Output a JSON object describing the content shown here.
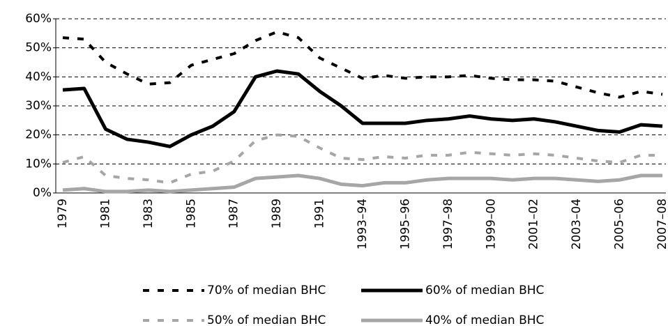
{
  "chart_data": {
    "type": "line",
    "categories": [
      "1979",
      null,
      "1981",
      null,
      "1983",
      null,
      "1985",
      null,
      "1987",
      null,
      "1989",
      null,
      "1991",
      null,
      "1993–94",
      null,
      "1995–96",
      null,
      "1997–98",
      null,
      "1999–00",
      null,
      "2001–02",
      null,
      "2003–04",
      null,
      "2005–06",
      null,
      "2007–08"
    ],
    "series": [
      {
        "name": "70% of median BHC",
        "color": "#000000",
        "style": "dashed",
        "values": [
          53.5,
          53,
          45,
          41,
          37.5,
          38,
          44,
          46,
          48,
          52.5,
          55.5,
          53.5,
          46.5,
          43,
          39.5,
          40.5,
          39.5,
          40,
          40,
          40.5,
          39.5,
          39,
          39,
          38.5,
          36.5,
          34.5,
          33,
          35,
          34
        ]
      },
      {
        "name": "60% of median BHC",
        "color": "#000000",
        "style": "solid",
        "values": [
          35.5,
          36,
          22,
          18.5,
          17.5,
          16,
          20,
          23,
          28,
          40,
          42,
          41,
          35,
          30,
          24,
          24,
          24,
          25,
          25.5,
          26.5,
          25.5,
          25,
          25.5,
          24.5,
          23,
          21.5,
          21,
          23.5,
          23
        ]
      },
      {
        "name": "50% of median BHC",
        "color": "#a6a6a6",
        "style": "dashed",
        "values": [
          10.5,
          12.5,
          6,
          5,
          4.5,
          3.5,
          6.5,
          7.5,
          11,
          18,
          20,
          19.5,
          15.5,
          12,
          11.5,
          12.5,
          12,
          13,
          13,
          14,
          13.5,
          13,
          13.5,
          13,
          12,
          11,
          10.5,
          13,
          13
        ]
      },
      {
        "name": "40% of median BHC",
        "color": "#a6a6a6",
        "style": "solid",
        "values": [
          1,
          1.5,
          0.5,
          0.5,
          1,
          0.5,
          1,
          1.5,
          2,
          5,
          5.5,
          6,
          5,
          3,
          2.5,
          3.5,
          3.5,
          4.5,
          5,
          5,
          5,
          4.5,
          5,
          5,
          4.5,
          4,
          4.5,
          6,
          6
        ]
      }
    ],
    "ylim": [
      0,
      60
    ],
    "yticks": [
      {
        "value": 0,
        "label": "0%"
      },
      {
        "value": 10,
        "label": "10%"
      },
      {
        "value": 20,
        "label": "20%"
      },
      {
        "value": 30,
        "label": "30%"
      },
      {
        "value": 40,
        "label": "40%"
      },
      {
        "value": 50,
        "label": "50%"
      },
      {
        "value": 60,
        "label": "60%"
      }
    ],
    "grid": true
  }
}
